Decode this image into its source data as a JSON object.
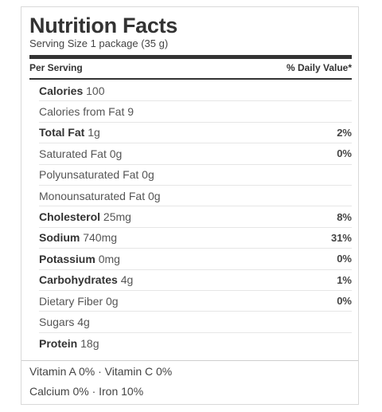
{
  "title": "Nutrition Facts",
  "serving_size": "Serving Size 1 package (35 g)",
  "header": {
    "per_serving": "Per Serving",
    "daily_value": "% Daily Value*"
  },
  "rows": [
    {
      "name": "Calories",
      "amount": "100",
      "bold": true,
      "dv": ""
    },
    {
      "name": "Calories from Fat 9",
      "amount": "",
      "bold": false,
      "dv": ""
    },
    {
      "name": "Total Fat",
      "amount": "1g",
      "bold": true,
      "dv": "2%"
    },
    {
      "name": "Saturated Fat 0g",
      "amount": "",
      "bold": false,
      "dv": "0%"
    },
    {
      "name": "Polyunsaturated Fat 0g",
      "amount": "",
      "bold": false,
      "dv": ""
    },
    {
      "name": "Monounsaturated Fat 0g",
      "amount": "",
      "bold": false,
      "dv": ""
    },
    {
      "name": "Cholesterol",
      "amount": "25mg",
      "bold": true,
      "dv": "8%"
    },
    {
      "name": "Sodium",
      "amount": "740mg",
      "bold": true,
      "dv": "31%"
    },
    {
      "name": "Potassium",
      "amount": "0mg",
      "bold": true,
      "dv": "0%"
    },
    {
      "name": "Carbohydrates",
      "amount": "4g",
      "bold": true,
      "dv": "1%"
    },
    {
      "name": "Dietary Fiber 0g",
      "amount": "",
      "bold": false,
      "dv": "0%"
    },
    {
      "name": "Sugars 4g",
      "amount": "",
      "bold": false,
      "dv": ""
    },
    {
      "name": "Protein",
      "amount": "18g",
      "bold": true,
      "dv": ""
    }
  ],
  "vitamins": {
    "line1": "Vitamin A 0% · Vitamin C 0%",
    "line2": "Calcium 0% · Iron 10%"
  }
}
